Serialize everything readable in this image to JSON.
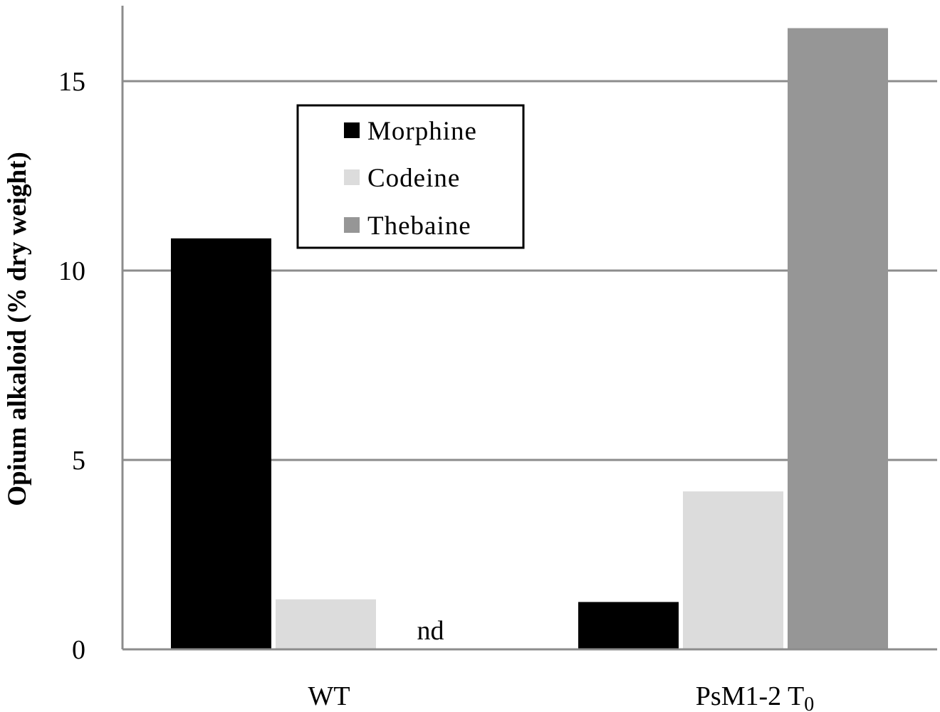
{
  "chart_data": {
    "type": "bar",
    "ylabel": "Opium alkaloid (% dry weight)",
    "xlabel": "",
    "ylim": [
      0,
      17
    ],
    "yticks": [
      0,
      5,
      10,
      15
    ],
    "grid": true,
    "legend_position": "top-left",
    "categories": [
      {
        "label": "WT",
        "subscript": ""
      },
      {
        "label": "PsM1-2  T",
        "subscript": "0"
      }
    ],
    "series": [
      {
        "name": "Morphine",
        "color": "#000000",
        "values": [
          10.85,
          1.25
        ]
      },
      {
        "name": "Codeine",
        "color": "#dcdcdc",
        "values": [
          1.32,
          4.17
        ]
      },
      {
        "name": "Thebaine",
        "color": "#969696",
        "values": [
          null,
          16.4
        ]
      }
    ],
    "annotations": [
      {
        "text": "nd",
        "category_index": 0,
        "series_index": 2
      }
    ]
  }
}
